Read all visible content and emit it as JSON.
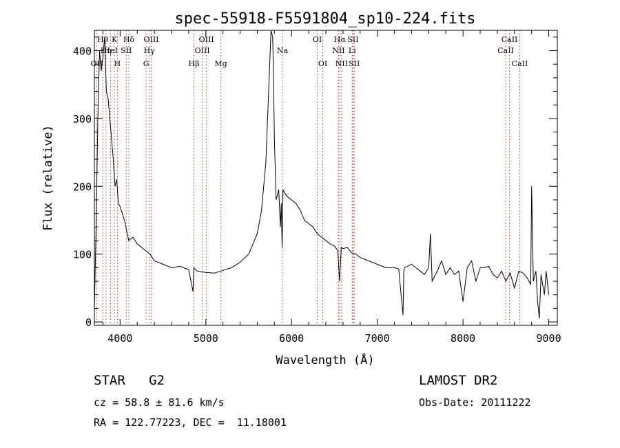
{
  "chart_data": {
    "type": "line",
    "title": "spec-55918-F5591804_sp10-224.fits",
    "xlabel": "Wavelength (Å)",
    "ylabel": "Flux (relative)",
    "xlim": [
      3700,
      9100
    ],
    "ylim": [
      -5,
      430
    ],
    "x_ticks": [
      4000,
      5000,
      6000,
      7000,
      8000,
      9000
    ],
    "y_ticks": [
      0,
      100,
      200,
      300,
      400
    ],
    "grid": false,
    "line_color": "#000000",
    "marker_color": "#c0392b",
    "series": [
      {
        "x": [
          3700,
          3720,
          3740,
          3760,
          3780,
          3800,
          3820,
          3840,
          3860,
          3880,
          3900,
          3920,
          3940,
          3960,
          3980,
          4000,
          4050,
          4100,
          4150,
          4200,
          4250,
          4300,
          4350,
          4400,
          4500,
          4600,
          4700,
          4800,
          4850,
          4860,
          4870,
          4900,
          5000,
          5100,
          5200,
          5300,
          5400,
          5500,
          5550,
          5600,
          5650,
          5700,
          5730,
          5760,
          5780,
          5790,
          5800,
          5820,
          5850,
          5870,
          5880,
          5890,
          5900,
          5920,
          5950,
          6000,
          6050,
          6100,
          6150,
          6200,
          6250,
          6300,
          6350,
          6400,
          6450,
          6500,
          6540,
          6560,
          6580,
          6600,
          6650,
          6700,
          6750,
          6800,
          6900,
          7000,
          7100,
          7200,
          7250,
          7300,
          7310,
          7320,
          7350,
          7400,
          7450,
          7500,
          7550,
          7600,
          7620,
          7640,
          7700,
          7750,
          7800,
          7850,
          7900,
          7950,
          8000,
          8050,
          8100,
          8150,
          8200,
          8250,
          8300,
          8350,
          8400,
          8450,
          8500,
          8550,
          8600,
          8650,
          8700,
          8750,
          8770,
          8790,
          8800,
          8820,
          8850,
          8870,
          8890,
          8910,
          8930,
          8950,
          8970,
          9000
        ],
        "y": [
          20,
          140,
          300,
          400,
          370,
          390,
          420,
          340,
          330,
          300,
          270,
          240,
          200,
          210,
          175,
          170,
          150,
          120,
          125,
          115,
          110,
          105,
          100,
          90,
          85,
          80,
          82,
          77,
          45,
          80,
          78,
          75,
          73,
          72,
          76,
          80,
          88,
          100,
          115,
          130,
          165,
          235,
          330,
          430,
          420,
          360,
          270,
          180,
          195,
          140,
          175,
          110,
          195,
          190,
          185,
          180,
          175,
          165,
          150,
          145,
          140,
          130,
          125,
          120,
          115,
          112,
          105,
          60,
          110,
          108,
          110,
          102,
          100,
          95,
          90,
          85,
          80,
          80,
          78,
          10,
          75,
          80,
          82,
          85,
          80,
          75,
          70,
          80,
          130,
          60,
          75,
          90,
          70,
          80,
          70,
          75,
          30,
          80,
          90,
          60,
          80,
          80,
          82,
          70,
          65,
          75,
          60,
          72,
          50,
          75,
          72,
          65,
          60,
          55,
          200,
          60,
          75,
          30,
          5,
          70,
          55,
          40,
          75,
          40
        ]
      }
    ],
    "line_markers": [
      {
        "x": 3727,
        "label": "OII",
        "row": 2
      },
      {
        "x": 3798,
        "label": "Hθ",
        "row": 0
      },
      {
        "x": 3835,
        "label": "Hη",
        "row": 1
      },
      {
        "x": 3889,
        "label": "HeI",
        "row": 1
      },
      {
        "x": 3934,
        "label": "K",
        "row": 0
      },
      {
        "x": 3969,
        "label": "H",
        "row": 2
      },
      {
        "x": 4072,
        "label": "SII",
        "row": 1
      },
      {
        "x": 4102,
        "label": "Hδ",
        "row": 0
      },
      {
        "x": 4304,
        "label": "G",
        "row": 2
      },
      {
        "x": 4341,
        "label": "Hγ",
        "row": 1
      },
      {
        "x": 4363,
        "label": "OIII",
        "row": 0
      },
      {
        "x": 4861,
        "label": "Hβ",
        "row": 2
      },
      {
        "x": 4959,
        "label": "OIII",
        "row": 1
      },
      {
        "x": 5007,
        "label": "OIII",
        "row": 0
      },
      {
        "x": 5175,
        "label": "Mg",
        "row": 2
      },
      {
        "x": 5894,
        "label": "Na",
        "row": 1
      },
      {
        "x": 6300,
        "label": "OI",
        "row": 0
      },
      {
        "x": 6364,
        "label": "OI",
        "row": 2
      },
      {
        "x": 6548,
        "label": "NII",
        "row": 1
      },
      {
        "x": 6563,
        "label": "Hα",
        "row": 0
      },
      {
        "x": 6584,
        "label": "NII",
        "row": 2
      },
      {
        "x": 6708,
        "label": "Li",
        "row": 1
      },
      {
        "x": 6717,
        "label": "SII",
        "row": 0
      },
      {
        "x": 6731,
        "label": "SII",
        "row": 2
      },
      {
        "x": 8498,
        "label": "CaII",
        "row": 1
      },
      {
        "x": 8542,
        "label": "CaII",
        "row": 0
      },
      {
        "x": 8662,
        "label": "CaII",
        "row": 2
      }
    ]
  },
  "info": {
    "class_text": "STAR   G2",
    "survey_text": "LAMOST DR2",
    "cz_text": "cz = 58.8 ± 81.6 km/s",
    "obs_date_text": "Obs-Date: 20111222",
    "coords_text": "RA = 122.77223, DEC =  11.18001"
  }
}
